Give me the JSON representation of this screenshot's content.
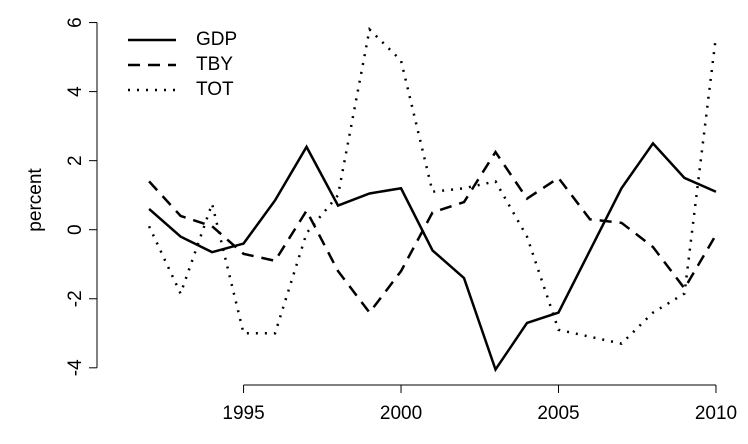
{
  "chart_data": {
    "type": "line",
    "y_label": "percent",
    "x": [
      1992,
      1993,
      1994,
      1995,
      1996,
      1997,
      1998,
      1999,
      2000,
      2001,
      2002,
      2003,
      2004,
      2005,
      2006,
      2007,
      2008,
      2009,
      2010
    ],
    "series": [
      {
        "name": "GDP",
        "color": "#000000",
        "dash": "solid",
        "values": [
          0.6,
          -0.2,
          -0.65,
          -0.4,
          0.85,
          2.4,
          0.7,
          1.05,
          1.2,
          -0.6,
          -1.4,
          -4.05,
          -2.7,
          -2.4,
          -0.6,
          1.2,
          2.5,
          1.5,
          1.1
        ]
      },
      {
        "name": "TBY",
        "color": "#000000",
        "dash": "dashed",
        "values": [
          1.4,
          0.4,
          0.1,
          -0.7,
          -0.9,
          0.55,
          -1.2,
          -2.4,
          -1.2,
          0.5,
          0.8,
          2.25,
          0.9,
          1.5,
          0.3,
          0.2,
          -0.5,
          -1.7,
          -0.15
        ]
      },
      {
        "name": "TOT",
        "color": "#000000",
        "dash": "dotted",
        "values": [
          0.1,
          -1.85,
          0.75,
          -3.0,
          -3.0,
          -0.1,
          1.0,
          5.8,
          4.9,
          1.1,
          1.2,
          1.4,
          -0.2,
          -2.9,
          -3.1,
          -3.3,
          -2.4,
          -1.85,
          5.6
        ]
      }
    ],
    "xlim": [
      1990.6,
      2010.7
    ],
    "ylim": [
      -4.44,
      6.19
    ],
    "xticks": [
      1995,
      2000,
      2005,
      2010
    ],
    "yticks": [
      -4,
      -2,
      0,
      2,
      4,
      6
    ],
    "legend": "top-left"
  }
}
